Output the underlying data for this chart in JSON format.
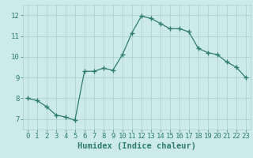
{
  "x": [
    0,
    1,
    2,
    3,
    4,
    5,
    6,
    7,
    8,
    9,
    10,
    11,
    12,
    13,
    14,
    15,
    16,
    17,
    18,
    19,
    20,
    21,
    22,
    23
  ],
  "y": [
    8.0,
    7.9,
    7.6,
    7.2,
    7.1,
    6.95,
    9.3,
    9.3,
    9.45,
    9.35,
    10.1,
    11.15,
    11.95,
    11.85,
    11.6,
    11.35,
    11.35,
    11.2,
    10.4,
    10.2,
    10.1,
    9.75,
    9.5,
    9.0
  ],
  "line_color": "#2e7d6e",
  "marker": "+",
  "marker_size": 4,
  "bg_color": "#cdeaea",
  "grid_color": "#a8cccc",
  "xlabel": "Humidex (Indice chaleur)",
  "xlabel_fontsize": 7.5,
  "ylim": [
    6.5,
    12.5
  ],
  "xlim": [
    -0.5,
    23.5
  ],
  "yticks": [
    7,
    8,
    9,
    10,
    11,
    12
  ],
  "xticks": [
    0,
    1,
    2,
    3,
    4,
    5,
    6,
    7,
    8,
    9,
    10,
    11,
    12,
    13,
    14,
    15,
    16,
    17,
    18,
    19,
    20,
    21,
    22,
    23
  ],
  "tick_fontsize": 6.5,
  "tick_color": "#2e7d6e"
}
